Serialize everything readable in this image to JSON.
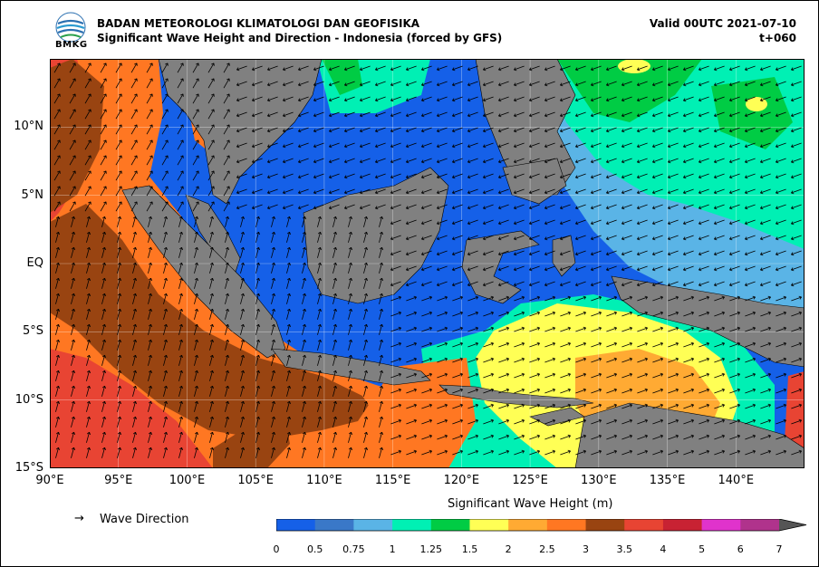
{
  "header": {
    "agency": "BADAN METEOROLOGI KLIMATOLOGI DAN GEOFISIKA",
    "product": "Significant Wave Height and Direction - Indonesia (forced by GFS)",
    "valid": "Valid 00UTC 2021-07-10",
    "lead": "t+060",
    "logo_text": "BMKG"
  },
  "map": {
    "lon_labels": [
      "90°E",
      "95°E",
      "100°E",
      "105°E",
      "110°E",
      "115°E",
      "120°E",
      "125°E",
      "130°E",
      "135°E",
      "140°E"
    ],
    "lat_labels": [
      "10°N",
      "5°N",
      "EQ",
      "5°S",
      "10°S",
      "15°S"
    ],
    "lon_range": [
      90,
      145
    ],
    "lat_range": [
      -15,
      15
    ],
    "land_color": "#808080",
    "grid": true
  },
  "legend": {
    "arrow": "→",
    "label": "Wave Direction"
  },
  "colorbar": {
    "title": "Significant Wave Height (m)",
    "ticks": [
      "0",
      "0.5",
      "0.75",
      "1",
      "1.25",
      "1.5",
      "2",
      "2.5",
      "3",
      "3.5",
      "4",
      "5",
      "6",
      "7"
    ],
    "colors": [
      "#1560e8",
      "#3a78c8",
      "#5ab4e6",
      "#00f0b4",
      "#00cc44",
      "#ffff55",
      "#ffaa33",
      "#ff7722",
      "#994411",
      "#e84433",
      "#c82233",
      "#e033cc",
      "#b0338c"
    ],
    "extend_color": "#555555"
  }
}
